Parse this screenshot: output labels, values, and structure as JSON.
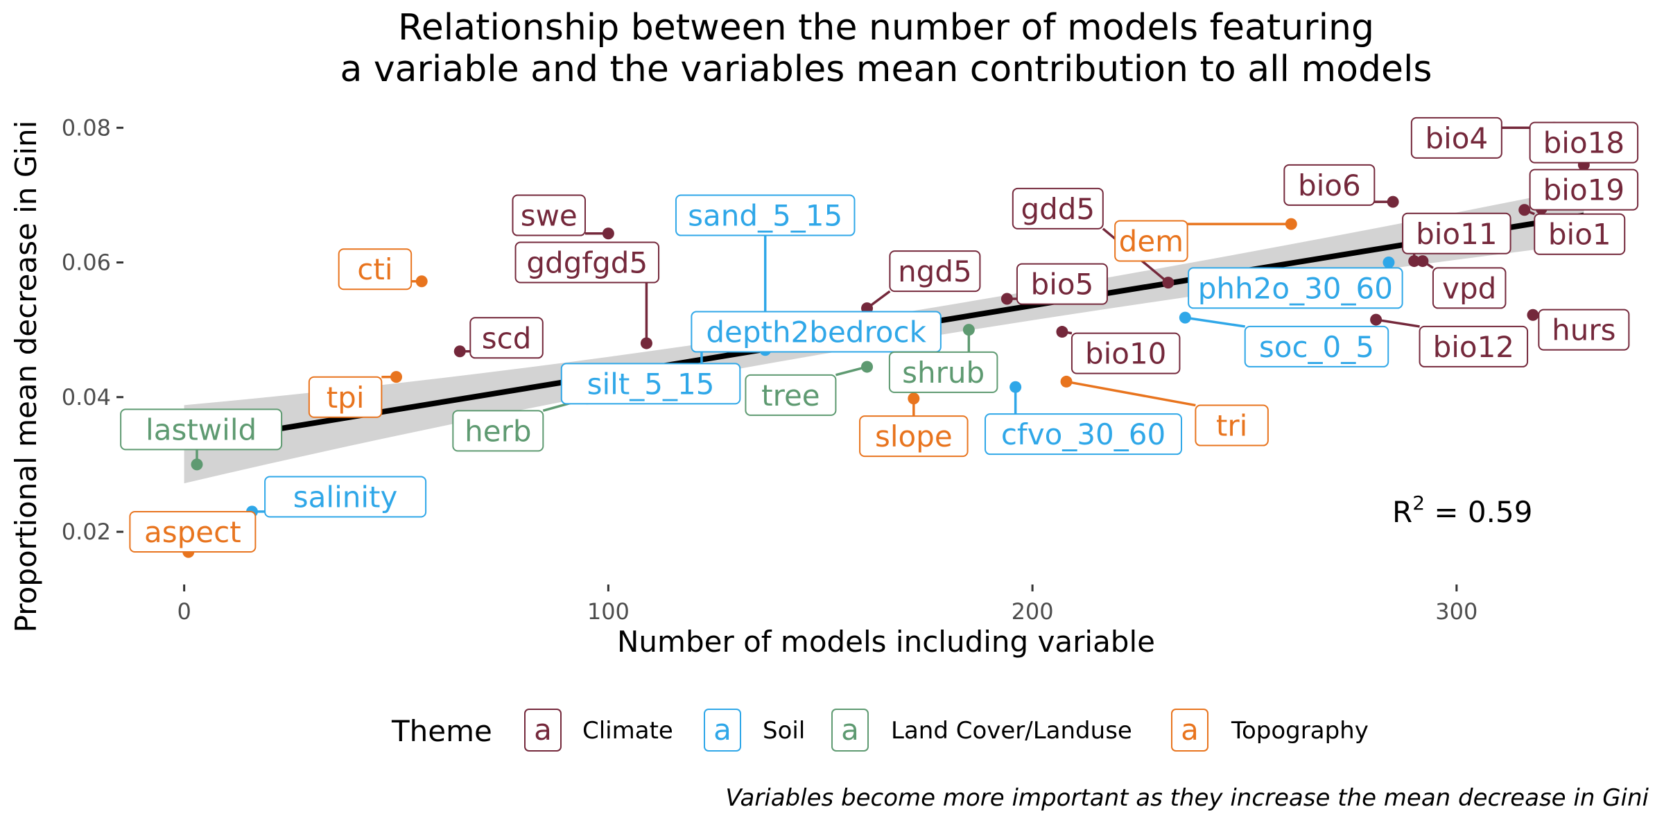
{
  "chart_data": {
    "type": "scatter",
    "title_lines": [
      "Relationship between the number of models featuring",
      "a variable and the variables mean contribution to all models"
    ],
    "xlabel": "Number of models including variable",
    "ylabel": "Proportional mean decrease in Gini",
    "xlim": [
      -14,
      344
    ],
    "ylim": [
      0.013,
      0.0825
    ],
    "x_ticks": [
      {
        "v": 0,
        "label": "0"
      },
      {
        "v": 100,
        "label": "100"
      },
      {
        "v": 200,
        "label": "200"
      },
      {
        "v": 300,
        "label": "300"
      }
    ],
    "y_ticks": [
      {
        "v": 0.02,
        "label": "0.02"
      },
      {
        "v": 0.04,
        "label": "0.04"
      },
      {
        "v": 0.06,
        "label": "0.06"
      },
      {
        "v": 0.08,
        "label": "0.08"
      }
    ],
    "grid": false,
    "legend": {
      "title": "Theme",
      "placement": "bottom",
      "key_glyph": "a",
      "entries": [
        {
          "theme": "Climate",
          "label": "Climate"
        },
        {
          "theme": "Soil",
          "label": "Soil"
        },
        {
          "theme": "Land Cover/Landuse",
          "label": "Land Cover/Landuse"
        },
        {
          "theme": "Topography",
          "label": "Topography"
        }
      ]
    },
    "theme_colors": {
      "Climate": "#74283b",
      "Soil": "#2fa7e8",
      "Land Cover/Landuse": "#5e9a71",
      "Topography": "#e8741e"
    },
    "regression": {
      "x0": 0,
      "y0": 0.033,
      "x1": 330,
      "y1": 0.067,
      "band_halfwidth_low": 0.0058,
      "band_halfwidth_mid": 0.0021,
      "band_halfwidth_high": 0.0042
    },
    "annotation": {
      "r2_base": "R",
      "r2_sup": "2",
      "r2_rest": " =  0.59"
    },
    "caption": "Variables become more important as they increase the mean decrease in Gini",
    "points": [
      {
        "name": "aspect",
        "theme": "Topography",
        "x": 1,
        "y": 0.017,
        "lx": 2,
        "ly": 0.02
      },
      {
        "name": "salinity",
        "theme": "Soil",
        "x": 16,
        "y": 0.023,
        "lx": 38,
        "ly": 0.0252
      },
      {
        "name": "lastwild",
        "theme": "Land Cover/Landuse",
        "x": 3,
        "y": 0.03,
        "lx": 4,
        "ly": 0.0352
      },
      {
        "name": "tpi",
        "theme": "Topography",
        "x": 50,
        "y": 0.043,
        "lx": 38,
        "ly": 0.04
      },
      {
        "name": "scd",
        "theme": "Climate",
        "x": 65,
        "y": 0.0468,
        "lx": 76,
        "ly": 0.0488
      },
      {
        "name": "cti",
        "theme": "Topography",
        "x": 56,
        "y": 0.0572,
        "lx": 45,
        "ly": 0.059
      },
      {
        "name": "swe",
        "theme": "Climate",
        "x": 100,
        "y": 0.0643,
        "lx": 86,
        "ly": 0.067
      },
      {
        "name": "gdgfgd5",
        "theme": "Climate",
        "x": 109,
        "y": 0.048,
        "lx": 95,
        "ly": 0.06
      },
      {
        "name": "herb",
        "theme": "Land Cover/Landuse",
        "x": 95,
        "y": 0.0398,
        "lx": 74,
        "ly": 0.035
      },
      {
        "name": "silt_5_15",
        "theme": "Soil",
        "x": 117,
        "y": 0.0428,
        "lx": 110,
        "ly": 0.042
      },
      {
        "name": "sand_5_15",
        "theme": "Soil",
        "x": 137,
        "y": 0.047,
        "lx": 137,
        "ly": 0.067
      },
      {
        "name": "depth2bedrock",
        "theme": "Soil",
        "x": 122,
        "y": 0.044,
        "lx": 149,
        "ly": 0.0497
      },
      {
        "name": "tree",
        "theme": "Land Cover/Landuse",
        "x": 161,
        "y": 0.0445,
        "lx": 143,
        "ly": 0.0403
      },
      {
        "name": "shrub",
        "theme": "Land Cover/Landuse",
        "x": 185,
        "y": 0.05,
        "lx": 179,
        "ly": 0.0437
      },
      {
        "name": "ngd5",
        "theme": "Climate",
        "x": 161,
        "y": 0.0532,
        "lx": 177,
        "ly": 0.0587
      },
      {
        "name": "slope",
        "theme": "Topography",
        "x": 172,
        "y": 0.0398,
        "lx": 172,
        "ly": 0.0342
      },
      {
        "name": "bio5",
        "theme": "Climate",
        "x": 194,
        "y": 0.0546,
        "lx": 207,
        "ly": 0.0568
      },
      {
        "name": "gdd5",
        "theme": "Climate",
        "x": 232,
        "y": 0.057,
        "lx": 206,
        "ly": 0.068
      },
      {
        "name": "bio10",
        "theme": "Climate",
        "x": 207,
        "y": 0.0497,
        "lx": 222,
        "ly": 0.0465
      },
      {
        "name": "cfvo_30_60",
        "theme": "Soil",
        "x": 196,
        "y": 0.0415,
        "lx": 212,
        "ly": 0.0345
      },
      {
        "name": "tri",
        "theme": "Topography",
        "x": 208,
        "y": 0.0423,
        "lx": 247,
        "ly": 0.0358
      },
      {
        "name": "dem",
        "theme": "Topography",
        "x": 261,
        "y": 0.0657,
        "lx": 228,
        "ly": 0.0632
      },
      {
        "name": "phh2o_30_60",
        "theme": "Soil",
        "x": 284,
        "y": 0.06,
        "lx": 262,
        "ly": 0.0562
      },
      {
        "name": "soc_0_5",
        "theme": "Soil",
        "x": 236,
        "y": 0.0518,
        "lx": 267,
        "ly": 0.0475
      },
      {
        "name": "bio6",
        "theme": "Climate",
        "x": 285,
        "y": 0.069,
        "lx": 270,
        "ly": 0.0715
      },
      {
        "name": "bio11",
        "theme": "Climate",
        "x": 290,
        "y": 0.0602,
        "lx": 300,
        "ly": 0.0643
      },
      {
        "name": "vpd",
        "theme": "Climate",
        "x": 292,
        "y": 0.0602,
        "lx": 303,
        "ly": 0.0562
      },
      {
        "name": "bio12",
        "theme": "Climate",
        "x": 281,
        "y": 0.0515,
        "lx": 304,
        "ly": 0.0475
      },
      {
        "name": "hurs",
        "theme": "Climate",
        "x": 318,
        "y": 0.0522,
        "lx": 330,
        "ly": 0.05
      },
      {
        "name": "bio4",
        "theme": "Climate",
        "x": 323,
        "y": 0.08,
        "lx": 300,
        "ly": 0.0785
      },
      {
        "name": "bio18",
        "theme": "Climate",
        "x": 330,
        "y": 0.0745,
        "lx": 330,
        "ly": 0.0778
      },
      {
        "name": "bio19",
        "theme": "Climate",
        "x": 320,
        "y": 0.068,
        "lx": 330,
        "ly": 0.0708
      },
      {
        "name": "bio1",
        "theme": "Climate",
        "x": 316,
        "y": 0.0678,
        "lx": 329,
        "ly": 0.0642
      }
    ]
  }
}
